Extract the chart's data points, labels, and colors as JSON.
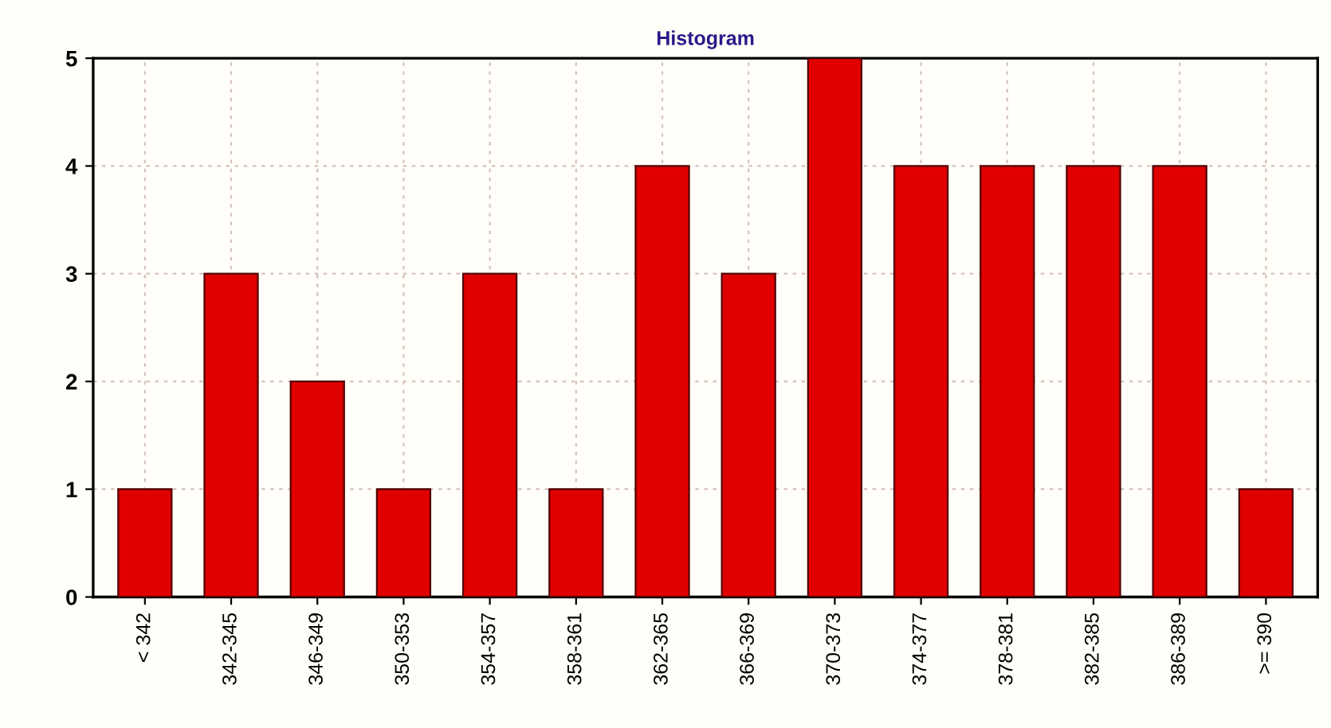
{
  "chart_data": {
    "type": "bar",
    "title": "Histogram",
    "categories": [
      "< 342",
      "342-345",
      "346-349",
      "350-353",
      "354-357",
      "358-361",
      "362-365",
      "366-369",
      "370-373",
      "374-377",
      "378-381",
      "382-385",
      "386-389",
      ">= 390"
    ],
    "values": [
      1,
      3,
      2,
      1,
      3,
      1,
      4,
      3,
      5,
      4,
      4,
      4,
      4,
      1
    ],
    "color": "#e00000",
    "ylim": [
      0,
      5
    ],
    "yticks": [
      0,
      1,
      2,
      3,
      4,
      5
    ],
    "grid": true
  }
}
